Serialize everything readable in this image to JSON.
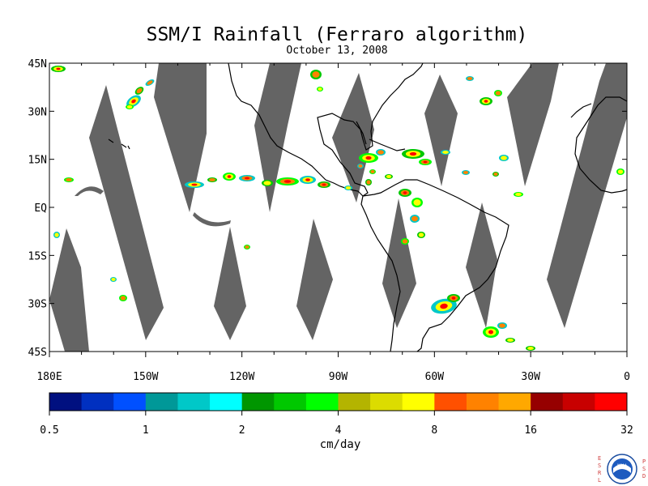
{
  "title": "SSM/I Rainfall (Ferraro algorithm)",
  "date": "October 13, 2008",
  "lat_labels": [
    "45N",
    "30N",
    "15N",
    "EQ",
    "15S",
    "30S",
    "45S"
  ],
  "lon_labels": [
    "180E",
    "150W",
    "120W",
    "90W",
    "60W",
    "30W",
    "0"
  ],
  "colorbar": {
    "unit": "cm/day",
    "tick_labels": [
      "0.5",
      "1",
      "2",
      "4",
      "8",
      "16",
      "32"
    ],
    "colors": [
      "#001080",
      "#0030c0",
      "#0050ff",
      "#009898",
      "#00c8c8",
      "#00ffff",
      "#009600",
      "#00c800",
      "#00ff00",
      "#b4b400",
      "#dcdc00",
      "#ffff00",
      "#ff5000",
      "#ff8200",
      "#ffa800",
      "#960000",
      "#c80000",
      "#ff0000"
    ]
  },
  "swath_color": "#646464",
  "logo": {
    "left_letters": "ESRL",
    "right_letters": "PSD",
    "name": "NOAA"
  }
}
